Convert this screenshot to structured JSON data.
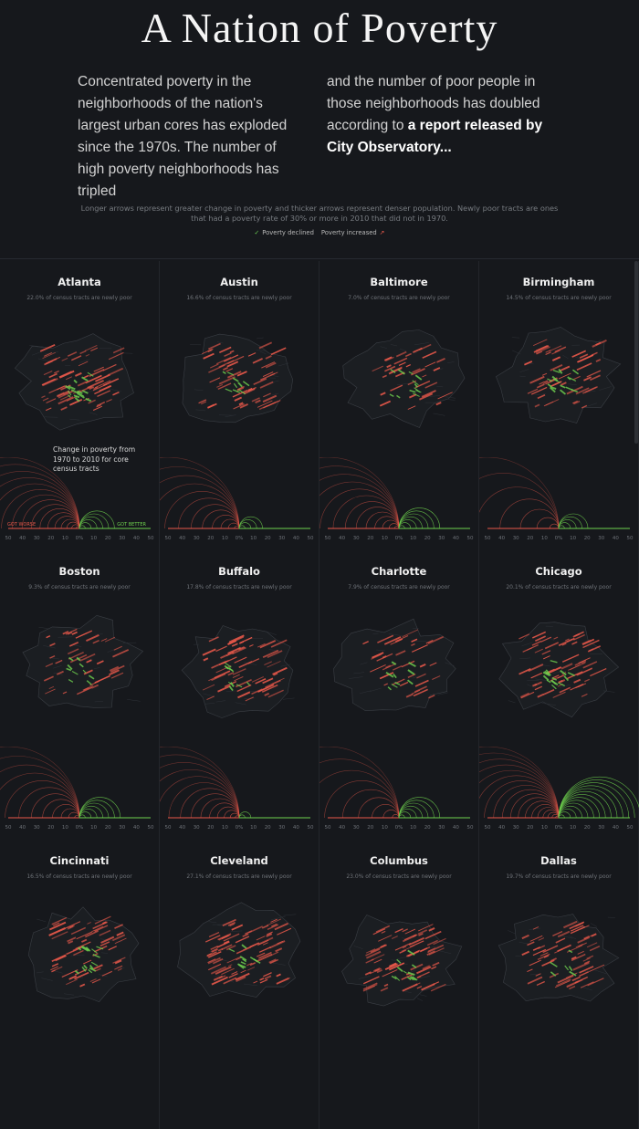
{
  "page": {
    "title": "A Nation of Poverty",
    "intro_left": "Concentrated poverty in the neighborhoods of the nation's largest urban cores has exploded since the 1970s. The number of high poverty neighborhoods has tripled",
    "intro_right_text": "and the number of poor people in those neighborhoods has doubled according to ",
    "intro_right_link": "a report released by City Observatory...",
    "note": "Longer arrows represent greater change in poverty and thicker arrows represent denser population. Newly poor tracts are ones that had a poverty rate of 30% or more in 2010 that did not in 1970.",
    "legend": {
      "declined_icon": "check-icon",
      "declined_label": "Poverty declined",
      "increased_label": "Poverty increased",
      "increased_icon": "arrow-up-right-icon"
    },
    "callout": "Change in poverty from 1970 to 2010 for core census tracts",
    "worse_label": "GOT WORSE",
    "better_label": "GOT BETTER",
    "colors": {
      "worse": "#e8584a",
      "better": "#6fd24e",
      "background": "#16181c"
    }
  },
  "chart_data": [
    {
      "type": "scatter",
      "title": "Atlanta",
      "subtitle": "22.0% of census tracts are newly poor",
      "newly_poor_pct": 22.0,
      "worse_arcs": 16,
      "better_arcs": 6,
      "x_ticks": [
        "50",
        "40",
        "30",
        "20",
        "10",
        "0%",
        "10",
        "20",
        "30",
        "40",
        "50"
      ],
      "xlim": [
        -50,
        50
      ]
    },
    {
      "type": "scatter",
      "title": "Austin",
      "subtitle": "16.6% of census tracts are newly poor",
      "newly_poor_pct": 16.6,
      "worse_arcs": 12,
      "better_arcs": 4,
      "x_ticks": [
        "50",
        "40",
        "30",
        "20",
        "10",
        "0%",
        "10",
        "20",
        "30",
        "40",
        "50"
      ],
      "xlim": [
        -50,
        50
      ]
    },
    {
      "type": "scatter",
      "title": "Baltimore",
      "subtitle": "7.0% of census tracts are newly poor",
      "newly_poor_pct": 7.0,
      "worse_arcs": 13,
      "better_arcs": 7,
      "x_ticks": [
        "50",
        "40",
        "30",
        "20",
        "10",
        "0%",
        "10",
        "20",
        "30",
        "40",
        "50"
      ],
      "xlim": [
        -50,
        50
      ]
    },
    {
      "type": "scatter",
      "title": "Birmingham",
      "subtitle": "14.5% of census tracts are newly poor",
      "newly_poor_pct": 14.5,
      "worse_arcs": 7,
      "better_arcs": 5,
      "x_ticks": [
        "50",
        "40",
        "30",
        "20",
        "10",
        "0%",
        "10",
        "20",
        "30",
        "40",
        "50"
      ],
      "xlim": [
        -50,
        50
      ]
    },
    {
      "type": "scatter",
      "title": "Boston",
      "subtitle": "9.3% of census tracts are newly poor",
      "newly_poor_pct": 9.3,
      "worse_arcs": 12,
      "better_arcs": 7,
      "x_ticks": [
        "50",
        "40",
        "30",
        "20",
        "10",
        "0%",
        "10",
        "20",
        "30",
        "40",
        "50"
      ],
      "xlim": [
        -50,
        50
      ]
    },
    {
      "type": "scatter",
      "title": "Buffalo",
      "subtitle": "17.8% of census tracts are newly poor",
      "newly_poor_pct": 17.8,
      "worse_arcs": 14,
      "better_arcs": 2,
      "x_ticks": [
        "50",
        "40",
        "30",
        "20",
        "10",
        "0%",
        "10",
        "20",
        "30",
        "40",
        "50"
      ],
      "xlim": [
        -50,
        50
      ]
    },
    {
      "type": "scatter",
      "title": "Charlotte",
      "subtitle": "7.9% of census tracts are newly poor",
      "newly_poor_pct": 7.9,
      "worse_arcs": 9,
      "better_arcs": 7,
      "x_ticks": [
        "50",
        "40",
        "30",
        "20",
        "10",
        "0%",
        "10",
        "20",
        "30",
        "40",
        "50"
      ],
      "xlim": [
        -50,
        50
      ]
    },
    {
      "type": "scatter",
      "title": "Chicago",
      "subtitle": "20.1% of census tracts are newly poor",
      "newly_poor_pct": 20.1,
      "worse_arcs": 18,
      "better_arcs": 14,
      "x_ticks": [
        "50",
        "40",
        "30",
        "20",
        "10",
        "0%",
        "10",
        "20",
        "30",
        "40",
        "50"
      ],
      "xlim": [
        -50,
        50
      ]
    },
    {
      "type": "scatter",
      "title": "Cincinnati",
      "subtitle": "16.5% of census tracts are newly poor",
      "newly_poor_pct": 16.5
    },
    {
      "type": "scatter",
      "title": "Cleveland",
      "subtitle": "27.1% of census tracts are newly poor",
      "newly_poor_pct": 27.1
    },
    {
      "type": "scatter",
      "title": "Columbus",
      "subtitle": "23.0% of census tracts are newly poor",
      "newly_poor_pct": 23.0
    },
    {
      "type": "scatter",
      "title": "Dallas",
      "subtitle": "19.7% of census tracts are newly poor",
      "newly_poor_pct": 19.7
    }
  ]
}
